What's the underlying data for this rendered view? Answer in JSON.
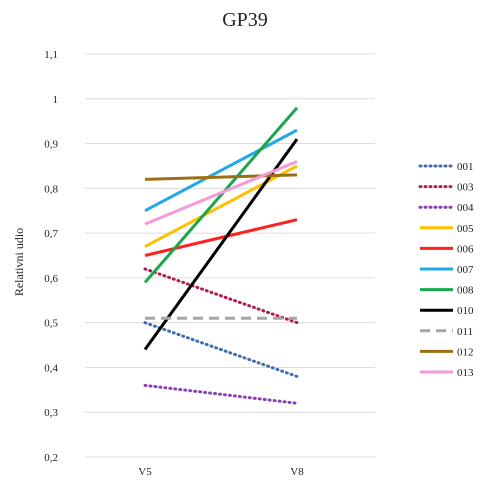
{
  "chart_data": {
    "type": "line",
    "title": "GP39",
    "xlabel": "",
    "ylabel": "Relativni udio",
    "categories": [
      "V5",
      "V8"
    ],
    "ylim": [
      0.2,
      1.1
    ],
    "yticks": [
      0.2,
      0.3,
      0.4,
      0.5,
      0.6,
      0.7,
      0.8,
      0.9,
      1,
      1.1
    ],
    "ytick_labels": [
      "0,2",
      "0,3",
      "0,4",
      "0,5",
      "0,6",
      "0,7",
      "0,8",
      "0,9",
      "1",
      "1,1"
    ],
    "grid": true,
    "legend_position": "right",
    "series": [
      {
        "name": "001",
        "values": [
          0.5,
          0.38
        ],
        "color": "#3e6fae",
        "dash": "dotted"
      },
      {
        "name": "003",
        "values": [
          0.62,
          0.5
        ],
        "color": "#b01e4e",
        "dash": "dotted"
      },
      {
        "name": "004",
        "values": [
          0.36,
          0.32
        ],
        "color": "#8a3fb5",
        "dash": "dotted"
      },
      {
        "name": "005",
        "values": [
          0.67,
          0.85
        ],
        "color": "#ffc000",
        "dash": "solid"
      },
      {
        "name": "006",
        "values": [
          0.65,
          0.73
        ],
        "color": "#ff2020",
        "dash": "solid"
      },
      {
        "name": "007",
        "values": [
          0.75,
          0.93
        ],
        "color": "#1fa9e8",
        "dash": "solid"
      },
      {
        "name": "008",
        "values": [
          0.59,
          0.98
        ],
        "color": "#1aa64a",
        "dash": "solid"
      },
      {
        "name": "010",
        "values": [
          0.44,
          0.91
        ],
        "color": "#000000",
        "dash": "solid"
      },
      {
        "name": "011",
        "values": [
          0.51,
          0.51
        ],
        "color": "#a6a6a6",
        "dash": "dashed"
      },
      {
        "name": "012",
        "values": [
          0.82,
          0.83
        ],
        "color": "#9c6f12",
        "dash": "solid"
      },
      {
        "name": "013",
        "values": [
          0.72,
          0.86
        ],
        "color": "#f49ad6",
        "dash": "solid"
      }
    ]
  }
}
